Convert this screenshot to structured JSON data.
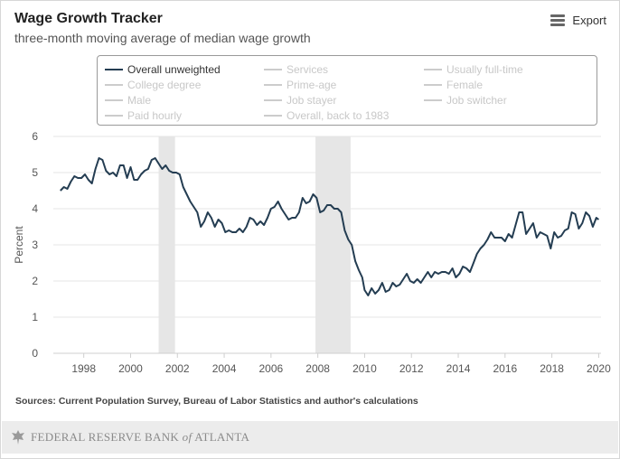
{
  "header": {
    "title": "Wage Growth Tracker",
    "subtitle": "three-month moving average of median wage growth",
    "export_label": "Export"
  },
  "legend": {
    "items": [
      {
        "label": "Overall unweighted",
        "active": true
      },
      {
        "label": "Services",
        "active": false
      },
      {
        "label": "Usually full-time",
        "active": false
      },
      {
        "label": "College degree",
        "active": false
      },
      {
        "label": "Prime-age",
        "active": false
      },
      {
        "label": "Female",
        "active": false
      },
      {
        "label": "Male",
        "active": false
      },
      {
        "label": "Job stayer",
        "active": false
      },
      {
        "label": "Job switcher",
        "active": false
      },
      {
        "label": "Paid hourly",
        "active": false
      },
      {
        "label": "Overall, back to 1983",
        "active": false
      }
    ]
  },
  "sources": "Sources: Current Population Survey, Bureau of Labor Statistics and author's calculations",
  "footer": {
    "brand_prefix": "FEDERAL RESERVE BANK ",
    "brand_of": "of",
    "brand_suffix": " ATLANTA"
  },
  "colors": {
    "series": "#243d52",
    "recession": "#e6e6e6",
    "grid": "#e6e6e6"
  },
  "chart_data": {
    "type": "line",
    "title": "Wage Growth Tracker",
    "subtitle": "three-month moving average of median wage growth",
    "xlabel": "",
    "ylabel": "Percent",
    "xlim": [
      1996.7,
      2020.1
    ],
    "ylim": [
      0,
      6
    ],
    "xticks": [
      1998,
      2000,
      2002,
      2004,
      2006,
      2008,
      2010,
      2012,
      2014,
      2016,
      2018,
      2020
    ],
    "yticks": [
      0,
      1,
      2,
      3,
      4,
      5,
      6
    ],
    "grid": "horizontal",
    "recessions": [
      [
        2001.2,
        2001.9
      ],
      [
        2007.9,
        2009.4
      ]
    ],
    "series": [
      {
        "name": "Overall unweighted",
        "points": [
          [
            1997.0,
            4.5
          ],
          [
            1997.15,
            4.6
          ],
          [
            1997.3,
            4.55
          ],
          [
            1997.45,
            4.75
          ],
          [
            1997.6,
            4.9
          ],
          [
            1997.75,
            4.85
          ],
          [
            1997.9,
            4.85
          ],
          [
            1998.05,
            4.95
          ],
          [
            1998.2,
            4.8
          ],
          [
            1998.35,
            4.7
          ],
          [
            1998.5,
            5.1
          ],
          [
            1998.65,
            5.4
          ],
          [
            1998.8,
            5.35
          ],
          [
            1998.95,
            5.05
          ],
          [
            1999.1,
            4.95
          ],
          [
            1999.25,
            5.0
          ],
          [
            1999.4,
            4.9
          ],
          [
            1999.55,
            5.2
          ],
          [
            1999.7,
            5.2
          ],
          [
            1999.85,
            4.85
          ],
          [
            2000.0,
            5.15
          ],
          [
            2000.15,
            4.8
          ],
          [
            2000.3,
            4.8
          ],
          [
            2000.45,
            4.95
          ],
          [
            2000.6,
            5.05
          ],
          [
            2000.75,
            5.1
          ],
          [
            2000.9,
            5.35
          ],
          [
            2001.05,
            5.4
          ],
          [
            2001.2,
            5.25
          ],
          [
            2001.35,
            5.1
          ],
          [
            2001.5,
            5.2
          ],
          [
            2001.65,
            5.05
          ],
          [
            2001.8,
            5.0
          ],
          [
            2001.95,
            5.0
          ],
          [
            2002.1,
            4.95
          ],
          [
            2002.25,
            4.6
          ],
          [
            2002.4,
            4.4
          ],
          [
            2002.55,
            4.2
          ],
          [
            2002.7,
            4.05
          ],
          [
            2002.85,
            3.9
          ],
          [
            2003.0,
            3.5
          ],
          [
            2003.15,
            3.65
          ],
          [
            2003.3,
            3.9
          ],
          [
            2003.45,
            3.75
          ],
          [
            2003.6,
            3.5
          ],
          [
            2003.75,
            3.7
          ],
          [
            2003.9,
            3.6
          ],
          [
            2004.05,
            3.35
          ],
          [
            2004.2,
            3.4
          ],
          [
            2004.35,
            3.35
          ],
          [
            2004.5,
            3.35
          ],
          [
            2004.65,
            3.45
          ],
          [
            2004.8,
            3.35
          ],
          [
            2004.95,
            3.5
          ],
          [
            2005.1,
            3.75
          ],
          [
            2005.25,
            3.7
          ],
          [
            2005.4,
            3.55
          ],
          [
            2005.55,
            3.65
          ],
          [
            2005.7,
            3.55
          ],
          [
            2005.85,
            3.75
          ],
          [
            2006.0,
            4.0
          ],
          [
            2006.15,
            4.05
          ],
          [
            2006.3,
            4.2
          ],
          [
            2006.45,
            4.0
          ],
          [
            2006.6,
            3.85
          ],
          [
            2006.75,
            3.7
          ],
          [
            2006.9,
            3.75
          ],
          [
            2007.05,
            3.75
          ],
          [
            2007.2,
            3.9
          ],
          [
            2007.35,
            4.3
          ],
          [
            2007.5,
            4.15
          ],
          [
            2007.65,
            4.2
          ],
          [
            2007.8,
            4.4
          ],
          [
            2007.95,
            4.3
          ],
          [
            2008.1,
            3.9
          ],
          [
            2008.25,
            3.95
          ],
          [
            2008.4,
            4.1
          ],
          [
            2008.55,
            4.1
          ],
          [
            2008.7,
            4.0
          ],
          [
            2008.85,
            4.0
          ],
          [
            2009.0,
            3.9
          ],
          [
            2009.15,
            3.4
          ],
          [
            2009.3,
            3.15
          ],
          [
            2009.45,
            3.0
          ],
          [
            2009.6,
            2.55
          ],
          [
            2009.75,
            2.3
          ],
          [
            2009.9,
            2.1
          ],
          [
            2010.0,
            1.75
          ],
          [
            2010.15,
            1.6
          ],
          [
            2010.3,
            1.8
          ],
          [
            2010.45,
            1.65
          ],
          [
            2010.6,
            1.75
          ],
          [
            2010.75,
            1.95
          ],
          [
            2010.9,
            1.7
          ],
          [
            2011.05,
            1.75
          ],
          [
            2011.2,
            1.95
          ],
          [
            2011.35,
            1.85
          ],
          [
            2011.5,
            1.9
          ],
          [
            2011.65,
            2.05
          ],
          [
            2011.8,
            2.2
          ],
          [
            2011.95,
            2.0
          ],
          [
            2012.1,
            1.95
          ],
          [
            2012.25,
            2.05
          ],
          [
            2012.4,
            1.95
          ],
          [
            2012.55,
            2.1
          ],
          [
            2012.7,
            2.25
          ],
          [
            2012.85,
            2.1
          ],
          [
            2013.0,
            2.25
          ],
          [
            2013.15,
            2.2
          ],
          [
            2013.3,
            2.25
          ],
          [
            2013.45,
            2.25
          ],
          [
            2013.6,
            2.2
          ],
          [
            2013.75,
            2.35
          ],
          [
            2013.9,
            2.1
          ],
          [
            2014.05,
            2.2
          ],
          [
            2014.2,
            2.4
          ],
          [
            2014.35,
            2.35
          ],
          [
            2014.5,
            2.25
          ],
          [
            2014.65,
            2.5
          ],
          [
            2014.8,
            2.75
          ],
          [
            2014.95,
            2.9
          ],
          [
            2015.1,
            3.0
          ],
          [
            2015.25,
            3.15
          ],
          [
            2015.4,
            3.35
          ],
          [
            2015.55,
            3.2
          ],
          [
            2015.7,
            3.2
          ],
          [
            2015.85,
            3.2
          ],
          [
            2016.0,
            3.1
          ],
          [
            2016.15,
            3.3
          ],
          [
            2016.3,
            3.2
          ],
          [
            2016.45,
            3.55
          ],
          [
            2016.6,
            3.9
          ],
          [
            2016.75,
            3.9
          ],
          [
            2016.9,
            3.3
          ],
          [
            2017.05,
            3.45
          ],
          [
            2017.2,
            3.6
          ],
          [
            2017.35,
            3.2
          ],
          [
            2017.5,
            3.35
          ],
          [
            2017.65,
            3.3
          ],
          [
            2017.8,
            3.25
          ],
          [
            2017.95,
            2.9
          ],
          [
            2018.1,
            3.35
          ],
          [
            2018.25,
            3.2
          ],
          [
            2018.4,
            3.25
          ],
          [
            2018.55,
            3.4
          ],
          [
            2018.7,
            3.45
          ],
          [
            2018.85,
            3.9
          ],
          [
            2019.0,
            3.85
          ],
          [
            2019.15,
            3.45
          ],
          [
            2019.3,
            3.6
          ],
          [
            2019.45,
            3.9
          ],
          [
            2019.6,
            3.8
          ],
          [
            2019.75,
            3.5
          ],
          [
            2019.9,
            3.75
          ],
          [
            2020.0,
            3.7
          ]
        ]
      }
    ]
  }
}
